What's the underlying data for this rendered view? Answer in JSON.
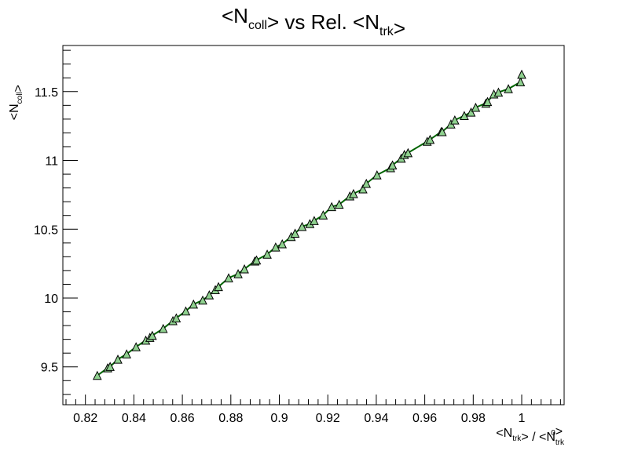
{
  "chart_data": {
    "type": "line",
    "title": {
      "parts": [
        {
          "t": "<N"
        },
        {
          "t": "coll",
          "sub": true
        },
        {
          "t": "> vs Rel. <N"
        },
        {
          "t": "trk",
          "sub": true
        },
        {
          "t": ">"
        }
      ]
    },
    "xlabel": {
      "parts": [
        {
          "t": "<N"
        },
        {
          "t": "trk",
          "sub": true
        },
        {
          "t": "> / <N"
        },
        {
          "t": "trk",
          "sub": true,
          "sup": "0"
        },
        {
          "t": ">"
        }
      ]
    },
    "ylabel": {
      "parts": [
        {
          "t": "<N"
        },
        {
          "t": "coll",
          "sub": true
        },
        {
          "t": ">"
        }
      ]
    },
    "xlim": [
      0.8107,
      1.0175
    ],
    "ylim": [
      9.225,
      11.835
    ],
    "x_ticks": [
      0.82,
      0.84,
      0.86,
      0.88,
      0.9,
      0.92,
      0.94,
      0.96,
      0.98,
      1
    ],
    "x_tick_labels": [
      "0.82",
      "0.84",
      "0.86",
      "0.88",
      "0.9",
      "0.92",
      "0.94",
      "0.96",
      "0.98",
      "1"
    ],
    "x_minor_step": 0.004,
    "y_ticks": [
      9.5,
      10,
      10.5,
      11,
      11.5
    ],
    "y_tick_labels": [
      "9.5",
      "10",
      "10.5",
      "11",
      "11.5"
    ],
    "y_minor_step": 0.1,
    "grid": false,
    "legend": "none",
    "line_color": "#006400",
    "marker_fill": "#8fd18f",
    "marker_stroke": "#000000",
    "marker": "triangle",
    "series": [
      {
        "x": [
          0.8249,
          0.8292,
          0.8302,
          0.8334,
          0.837,
          0.8409,
          0.8449,
          0.8466,
          0.8476,
          0.8521,
          0.8561,
          0.8575,
          0.8614,
          0.8646,
          0.8684,
          0.8711,
          0.8736,
          0.8749,
          0.8791,
          0.883,
          0.8856,
          0.8899,
          0.8906,
          0.895,
          0.8985,
          0.9012,
          0.9049,
          0.9065,
          0.9094,
          0.9126,
          0.9144,
          0.9181,
          0.9216,
          0.9247,
          0.9291,
          0.9306,
          0.9345,
          0.9359,
          0.9403,
          0.9459,
          0.9467,
          0.9503,
          0.9516,
          0.9531,
          0.961,
          0.9622,
          0.9668,
          0.9672,
          0.9708,
          0.9724,
          0.9763,
          0.9791,
          0.981,
          0.9852,
          0.9859,
          0.9885,
          0.9904,
          0.9945,
          0.9995,
          1.0
        ],
        "y": [
          9.437,
          9.492,
          9.502,
          9.555,
          9.593,
          9.645,
          9.693,
          9.713,
          9.728,
          9.778,
          9.835,
          9.855,
          9.905,
          9.955,
          9.984,
          10.022,
          10.06,
          10.082,
          10.146,
          10.176,
          10.211,
          10.268,
          10.276,
          10.318,
          10.37,
          10.393,
          10.446,
          10.47,
          10.519,
          10.54,
          10.562,
          10.603,
          10.663,
          10.68,
          10.741,
          10.758,
          10.792,
          10.832,
          10.894,
          10.946,
          10.966,
          11.015,
          11.042,
          11.055,
          11.138,
          11.152,
          11.208,
          11.208,
          11.264,
          11.293,
          11.325,
          11.35,
          11.385,
          11.415,
          11.427,
          11.482,
          11.495,
          11.52,
          11.57,
          11.625
        ]
      }
    ]
  }
}
